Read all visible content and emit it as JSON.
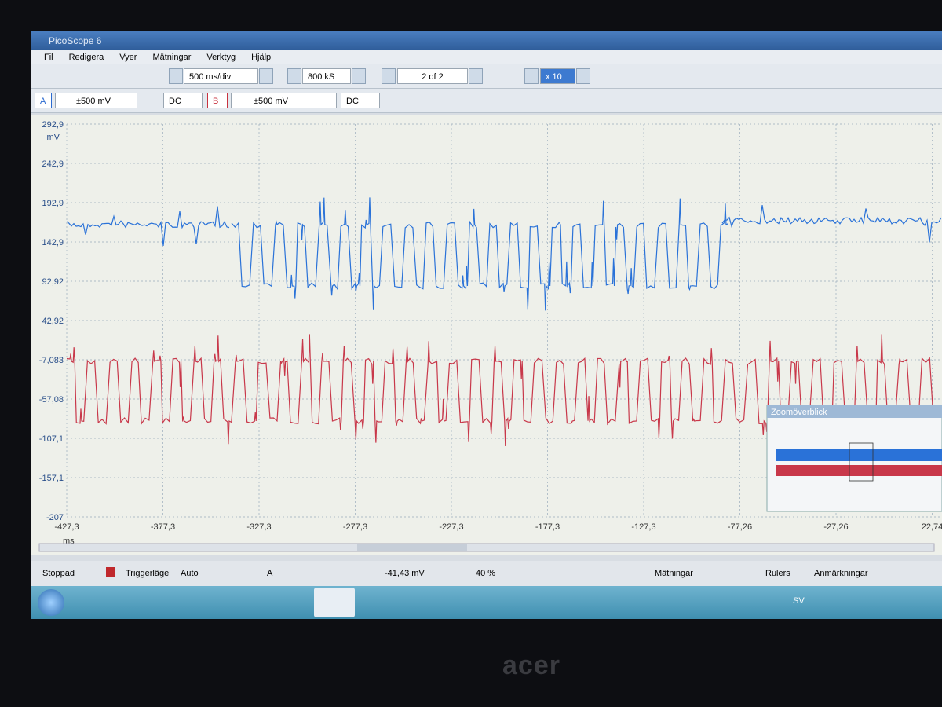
{
  "window": {
    "title": "PicoScope 6"
  },
  "menu": [
    "Fil",
    "Redigera",
    "Vyer",
    "Mätningar",
    "Verktyg",
    "Hjälp"
  ],
  "toolbar": {
    "timebase": "500 ms/div",
    "samples": "800 kS",
    "buffer": "2 of 2",
    "zoom": "x 10"
  },
  "channels": [
    {
      "name": "A",
      "range": "±500 mV",
      "coupling": "DC"
    },
    {
      "name": "B",
      "range": "±500 mV",
      "coupling": "DC"
    }
  ],
  "plot": {
    "y_unit": "mV",
    "y_labels": [
      "292,9",
      "242,9",
      "192,9",
      "142,9",
      "92,92",
      "42,92",
      "-7,083",
      "-57,08",
      "-107,1",
      "-157,1",
      "-207"
    ],
    "x_unit": "ms",
    "x_labels": [
      "-427,3",
      "-377,3",
      "-327,3",
      "-277,3",
      "-227,3",
      "-177,3",
      "-127,3",
      "-77,26",
      "-27,26",
      "22,74"
    ]
  },
  "zoom_overview": {
    "title": "Zoomöverblick"
  },
  "status_bar": {
    "state": "Stoppad",
    "trigger_label": "Triggerläge",
    "trigger_mode": "Auto",
    "trigger_channel": "A",
    "trigger_level": "-41,43 mV",
    "pre_trigger": "40 %",
    "measurements": "Mätningar",
    "rulers": "Rulers",
    "annotations": "Anmärkningar"
  },
  "taskbar": {
    "language": "SV"
  },
  "bezel": {
    "brand": "acer"
  }
}
